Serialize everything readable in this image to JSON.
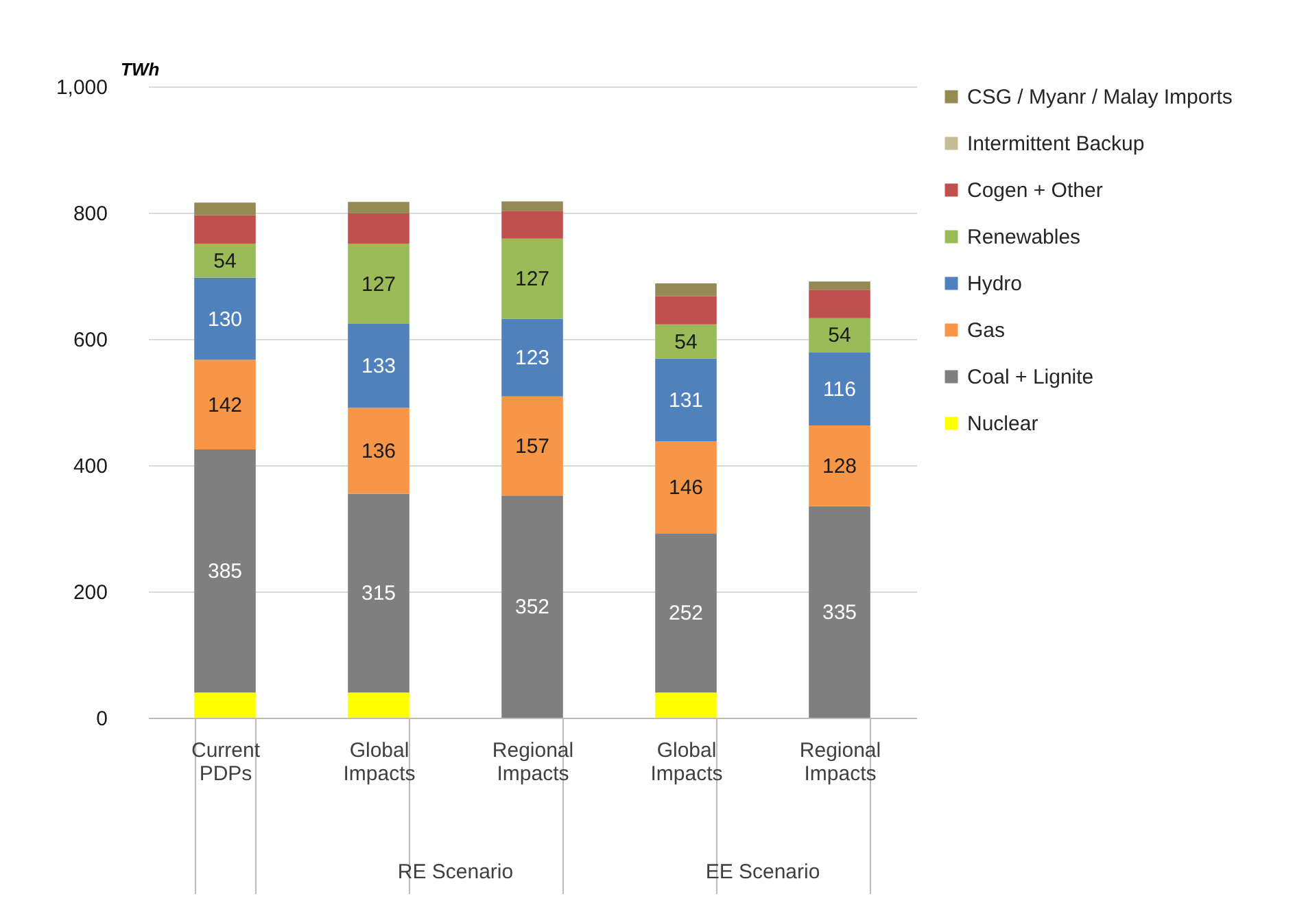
{
  "chart_data": {
    "type": "bar",
    "stacked": true,
    "ylabel": "TWh",
    "categories": [
      "Current PDPs",
      "Global Impacts",
      "Regional Impacts",
      "Global Impacts",
      "Regional Impacts"
    ],
    "annotations": [
      "RE Scenario",
      "EE Scenario"
    ],
    "ylim": [
      0,
      1000
    ],
    "yticks": [
      0,
      200,
      400,
      600,
      800,
      {
        "value": 1000,
        "label": "1,000"
      }
    ],
    "grid": "y",
    "legend": "right",
    "series": [
      {
        "name": "Nuclear",
        "color": "#ffff00",
        "values": [
          40,
          40,
          null,
          40,
          null
        ]
      },
      {
        "name": "Coal + Lignite",
        "color": "#7f7f7f",
        "values": [
          385,
          315,
          352,
          252,
          335
        ],
        "value_labels": [
          "385",
          "315",
          "352",
          "252",
          "335"
        ]
      },
      {
        "name": "Gas",
        "color": "#f79646",
        "values": [
          142,
          136,
          157,
          146,
          128
        ],
        "value_labels": [
          "142",
          "136",
          "157",
          "146",
          "128"
        ]
      },
      {
        "name": "Hydro",
        "color": "#4f81bd",
        "values": [
          130,
          133,
          123,
          131,
          116
        ],
        "value_labels": [
          "130",
          "133",
          "123",
          "131",
          "116"
        ]
      },
      {
        "name": "Renewables",
        "color": "#9bbb59",
        "values": [
          54,
          127,
          127,
          54,
          54
        ],
        "value_labels": [
          "54",
          "127",
          "127",
          "54",
          "54"
        ]
      },
      {
        "name": "Cogen + Other",
        "color": "#c0504d",
        "values": [
          45,
          48,
          44,
          45,
          45
        ]
      },
      {
        "name": "Intermittent Backup",
        "color": "#c4bd97",
        "values": [
          null,
          null,
          null,
          null,
          null
        ]
      },
      {
        "name": "CSG / Myanr / Malay Imports",
        "color": "#948a54",
        "values": [
          20,
          18,
          15,
          20,
          13
        ]
      }
    ]
  }
}
